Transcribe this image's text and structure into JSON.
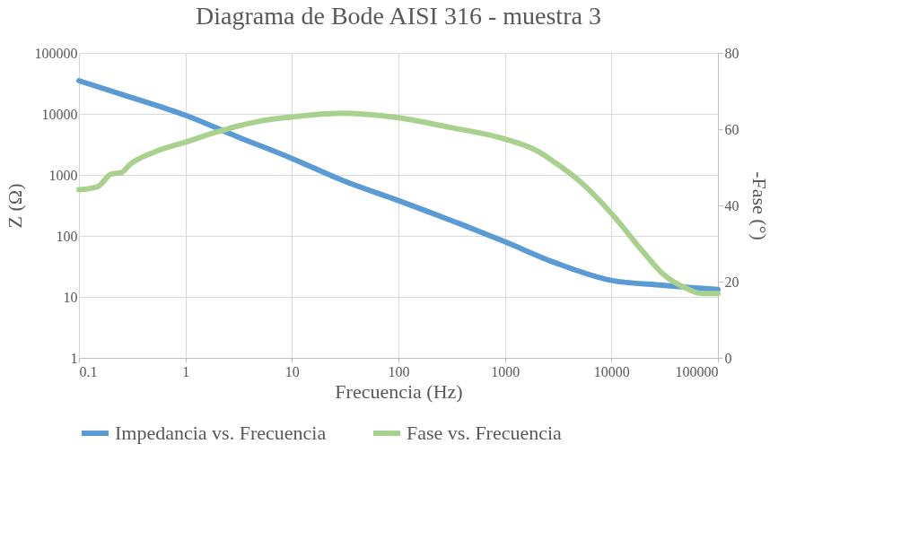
{
  "chart_data": {
    "type": "line",
    "title": "Diagrama  de Bode AISI 316 - muestra 3",
    "xlabel": "Frecuencia (Hz)",
    "ylabel": "Z (Ω)",
    "y2label": "-Fase (°)",
    "log": "xy",
    "grid": true,
    "legend": "bottom",
    "marker": "none",
    "line_style": "solid",
    "xlim": [
      0.1,
      100000
    ],
    "xticks": [
      0.1,
      1,
      10,
      100,
      1000,
      10000,
      100000
    ],
    "ylim": [
      1,
      100000
    ],
    "yticks": [
      1,
      10,
      100,
      1000,
      10000,
      100000
    ],
    "y2lim": [
      0,
      80
    ],
    "y2ticks": [
      0,
      20,
      40,
      60,
      80
    ],
    "series": [
      {
        "name": "Impedancia vs. Frecuencia",
        "color": "#5b9bd5",
        "x": [
          0.1,
          0.3,
          1,
          3,
          10,
          30,
          100,
          1000,
          3000,
          10000,
          30000,
          100000
        ],
        "values": [
          35000,
          19000,
          9500,
          4300,
          1860,
          810,
          380,
          80,
          36,
          18.6,
          15.5,
          13.2
        ]
      },
      {
        "name": "Fase vs. Frecuencia",
        "color": "#a9d18e",
        "axis": "y2",
        "x": [
          0.1,
          0.15,
          0.2,
          0.25,
          0.3,
          0.5,
          1,
          2,
          3,
          5,
          10,
          20,
          30,
          50,
          100,
          300,
          1000,
          2000,
          3000,
          5000,
          10000,
          20000,
          30000,
          50000,
          70000,
          100000
        ],
        "values": [
          44.1,
          44.9,
          48.2,
          48.6,
          50.7,
          53.9,
          56.6,
          59.3,
          60.7,
          62.1,
          63.2,
          64.0,
          64.2,
          63.9,
          63.0,
          60.5,
          57.4,
          54.3,
          51.1,
          46.4,
          37.9,
          27.7,
          22.2,
          18.3,
          16.9,
          16.9
        ]
      }
    ]
  }
}
